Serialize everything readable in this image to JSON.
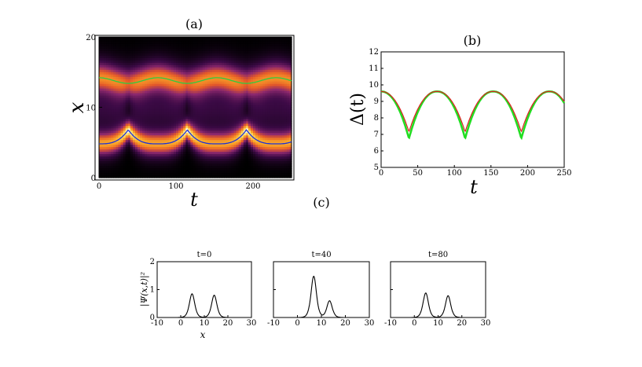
{
  "chart_data": [
    {
      "id": "a",
      "type": "heatmap",
      "title": "(a)",
      "xlabel": "t",
      "ylabel": "x",
      "xlim": [
        0,
        250
      ],
      "ylim": [
        0,
        20
      ],
      "xticks": [
        0,
        100,
        200
      ],
      "yticks": [
        0,
        10,
        20
      ],
      "colormap": "black-purple-orange-white (density |Ψ(x,t)|²)",
      "series": [
        {
          "name": "upper soliton center",
          "color": "#2ecc40",
          "x": [
            0,
            38,
            77,
            115,
            153,
            192,
            230,
            250
          ],
          "y": [
            14.2,
            13.4,
            14.2,
            13.4,
            14.2,
            13.4,
            14.2,
            13.9
          ]
        },
        {
          "name": "lower soliton center",
          "color": "#1f2fd6",
          "x": [
            0,
            20,
            38,
            58,
            77,
            96,
            115,
            134,
            153,
            172,
            192,
            211,
            230,
            250
          ],
          "y": [
            4.8,
            5.3,
            6.8,
            5.3,
            4.8,
            5.3,
            6.8,
            5.3,
            4.8,
            5.3,
            6.8,
            5.3,
            4.8,
            5.3
          ]
        }
      ]
    },
    {
      "id": "b",
      "type": "line",
      "title": "(b)",
      "xlabel": "t",
      "ylabel": "Δ(t)",
      "xlim": [
        0,
        250
      ],
      "ylim": [
        5,
        12
      ],
      "xticks": [
        0,
        50,
        100,
        150,
        200,
        250
      ],
      "yticks": [
        5,
        6,
        7,
        8,
        9,
        10,
        11,
        12
      ],
      "period": 76.7,
      "series": [
        {
          "name": "green",
          "color": "#22dd22",
          "max": 9.6,
          "min": 6.75
        },
        {
          "name": "red",
          "color": "#dd2222",
          "max": 9.6,
          "min": 7.15
        }
      ]
    },
    {
      "id": "c",
      "type": "line",
      "title": "(c)",
      "xlabel": "x",
      "ylabel": "|Ψ(x,t)|²",
      "xlim": [
        -10,
        30
      ],
      "ylim": [
        0,
        2
      ],
      "xticks": [
        -10,
        0,
        10,
        20,
        30
      ],
      "yticks": [
        0,
        1,
        2
      ],
      "panels": [
        {
          "title": "t=0",
          "peaks": [
            {
              "center": 4.8,
              "height": 0.85
            },
            {
              "center": 14.2,
              "height": 0.8
            }
          ]
        },
        {
          "title": "t=40",
          "peaks": [
            {
              "center": 6.8,
              "height": 1.48
            },
            {
              "center": 13.4,
              "height": 0.6
            }
          ]
        },
        {
          "title": "t=80",
          "peaks": [
            {
              "center": 4.8,
              "height": 0.88
            },
            {
              "center": 14.2,
              "height": 0.78
            }
          ]
        }
      ]
    }
  ]
}
